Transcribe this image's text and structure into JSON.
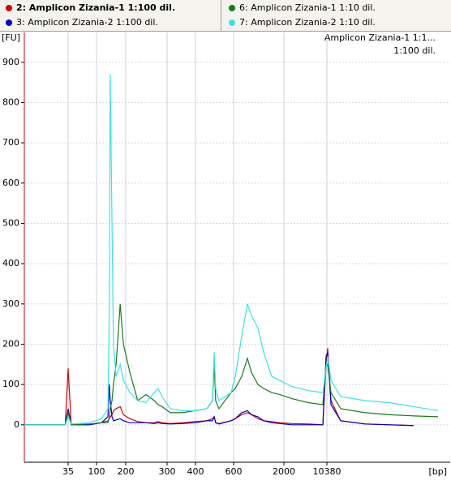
{
  "chart_data": {
    "type": "line",
    "y_label": "[FU]",
    "x_label": "[bp]",
    "annotations": [
      "Amplicon Zizania-1 1:1...",
      "1:100 dil."
    ],
    "x": [
      20,
      34,
      35,
      42,
      83,
      117,
      139,
      144,
      147,
      153,
      158,
      167,
      181,
      192,
      210,
      229,
      249,
      269,
      278,
      288,
      311,
      354,
      397,
      460,
      489,
      498,
      506,
      523,
      587,
      645,
      826,
      984,
      1097,
      1277,
      1436,
      1661,
      1887,
      3581,
      6743,
      9589,
      10222,
      10399,
      10476,
      10705,
      11279,
      11852,
      12426,
      13000
    ],
    "series": [
      {
        "name": "2: Amplicon Zizania-1 1:100 dil.",
        "color": "#d40000",
        "values": [
          0,
          0,
          140,
          0,
          0,
          5,
          10,
          15,
          20,
          25,
          35,
          40,
          45,
          25,
          15,
          8,
          5,
          5,
          8,
          5,
          3,
          5,
          8,
          10,
          15,
          20,
          5,
          3,
          10,
          15,
          25,
          30,
          25,
          15,
          10,
          8,
          5,
          3,
          2,
          0,
          150,
          190,
          60,
          10,
          2,
          0,
          -2,
          null
        ]
      },
      {
        "name": "3: Amplicon Zizania-2 1:100 dil.",
        "color": "#0000c8",
        "values": [
          0,
          0,
          40,
          0,
          0,
          5,
          20,
          100,
          60,
          20,
          10,
          12,
          15,
          10,
          5,
          5,
          5,
          3,
          5,
          3,
          2,
          3,
          5,
          10,
          10,
          20,
          5,
          2,
          10,
          15,
          30,
          35,
          25,
          20,
          10,
          5,
          3,
          0,
          0,
          0,
          170,
          180,
          50,
          10,
          2,
          0,
          -2,
          null
        ]
      },
      {
        "name": "6: Amplicon Zizania-1 1:10 dil.",
        "color": "#1a7a1a",
        "values": [
          0,
          0,
          30,
          0,
          2,
          5,
          5,
          20,
          40,
          60,
          100,
          150,
          300,
          200,
          130,
          60,
          75,
          60,
          50,
          45,
          30,
          30,
          35,
          40,
          60,
          150,
          60,
          40,
          80,
          90,
          120,
          165,
          130,
          100,
          90,
          80,
          75,
          65,
          55,
          50,
          150,
          150,
          80,
          40,
          30,
          25,
          22,
          20
        ]
      },
      {
        "name": "7: Amplicon Zizania-2 1:10 dil.",
        "color": "#38e4e4",
        "values": [
          0,
          0,
          20,
          2,
          5,
          15,
          40,
          300,
          870,
          500,
          200,
          120,
          150,
          110,
          80,
          60,
          55,
          80,
          90,
          70,
          40,
          35,
          35,
          40,
          60,
          180,
          90,
          60,
          80,
          120,
          220,
          300,
          270,
          240,
          180,
          120,
          110,
          95,
          85,
          80,
          140,
          170,
          110,
          70,
          60,
          55,
          45,
          35
        ]
      }
    ],
    "xlim": [
      20,
      13000
    ],
    "xticks": [
      35,
      100,
      200,
      300,
      400,
      600,
      2000,
      10380
    ],
    "ylim": [
      -93,
      974
    ],
    "yticks": [
      0,
      100,
      200,
      300,
      400,
      500,
      600,
      700,
      800,
      900
    ],
    "grid": true
  }
}
